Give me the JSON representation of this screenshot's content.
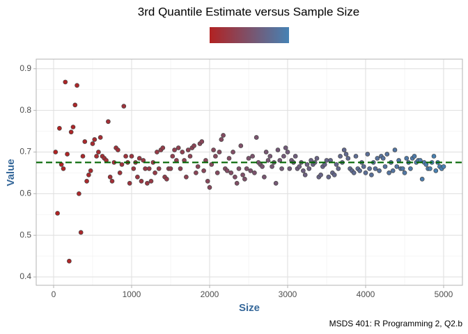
{
  "chart_data": {
    "type": "scatter",
    "title": "3rd Quantile Estimate versus Sample Size",
    "x_label": "Size",
    "y_label": "Value",
    "caption": "MSDS 401: R Programming 2, Q2.b",
    "low_color": "#b22222",
    "high_color": "#4682b4",
    "reference_line": 0.675,
    "reference_color": "#006400",
    "x": [
      25,
      50,
      75,
      100,
      125,
      150,
      175,
      200,
      225,
      250,
      275,
      300,
      325,
      350,
      375,
      400,
      425,
      450,
      475,
      500,
      525,
      550,
      575,
      600,
      625,
      650,
      675,
      700,
      725,
      750,
      775,
      800,
      825,
      850,
      875,
      900,
      925,
      950,
      975,
      1000,
      1025,
      1050,
      1075,
      1100,
      1125,
      1150,
      1175,
      1200,
      1225,
      1250,
      1275,
      1300,
      1325,
      1350,
      1375,
      1400,
      1425,
      1450,
      1475,
      1500,
      1525,
      1550,
      1575,
      1600,
      1625,
      1650,
      1675,
      1700,
      1725,
      1750,
      1775,
      1800,
      1825,
      1850,
      1875,
      1900,
      1925,
      1950,
      1975,
      2000,
      2025,
      2050,
      2075,
      2100,
      2125,
      2150,
      2175,
      2200,
      2225,
      2250,
      2275,
      2300,
      2325,
      2350,
      2375,
      2400,
      2425,
      2450,
      2475,
      2500,
      2525,
      2550,
      2575,
      2600,
      2625,
      2650,
      2675,
      2700,
      2725,
      2750,
      2775,
      2800,
      2825,
      2850,
      2875,
      2900,
      2925,
      2950,
      2975,
      3000,
      3025,
      3050,
      3075,
      3100,
      3125,
      3150,
      3175,
      3200,
      3225,
      3250,
      3275,
      3300,
      3325,
      3350,
      3375,
      3400,
      3425,
      3450,
      3475,
      3500,
      3525,
      3550,
      3575,
      3600,
      3625,
      3650,
      3675,
      3700,
      3725,
      3750,
      3775,
      3800,
      3825,
      3850,
      3875,
      3900,
      3925,
      3950,
      3975,
      4000,
      4025,
      4050,
      4075,
      4100,
      4125,
      4150,
      4175,
      4200,
      4225,
      4250,
      4275,
      4300,
      4325,
      4350,
      4375,
      4400,
      4425,
      4450,
      4475,
      4500,
      4525,
      4550,
      4575,
      4600,
      4625,
      4650,
      4675,
      4700,
      4725,
      4750,
      4775,
      4800,
      4825,
      4850,
      4875,
      4900,
      4925,
      4950,
      4975,
      5000
    ],
    "values": [
      0.7,
      0.553,
      0.757,
      0.67,
      0.66,
      0.868,
      0.695,
      0.438,
      0.748,
      0.76,
      0.813,
      0.86,
      0.6,
      0.507,
      0.69,
      0.725,
      0.63,
      0.645,
      0.655,
      0.72,
      0.73,
      0.69,
      0.7,
      0.735,
      0.69,
      0.685,
      0.68,
      0.773,
      0.64,
      0.63,
      0.675,
      0.71,
      0.705,
      0.65,
      0.67,
      0.81,
      0.69,
      0.675,
      0.625,
      0.69,
      0.66,
      0.675,
      0.64,
      0.685,
      0.63,
      0.68,
      0.66,
      0.625,
      0.66,
      0.63,
      0.675,
      0.65,
      0.7,
      0.66,
      0.705,
      0.71,
      0.64,
      0.635,
      0.66,
      0.66,
      0.69,
      0.705,
      0.68,
      0.71,
      0.66,
      0.7,
      0.68,
      0.64,
      0.705,
      0.69,
      0.71,
      0.715,
      0.65,
      0.665,
      0.72,
      0.725,
      0.655,
      0.68,
      0.63,
      0.615,
      0.67,
      0.705,
      0.69,
      0.65,
      0.7,
      0.73,
      0.74,
      0.66,
      0.655,
      0.685,
      0.65,
      0.7,
      0.64,
      0.625,
      0.66,
      0.715,
      0.645,
      0.635,
      0.66,
      0.685,
      0.655,
      0.69,
      0.65,
      0.735,
      0.675,
      0.67,
      0.665,
      0.64,
      0.7,
      0.68,
      0.69,
      0.665,
      0.675,
      0.625,
      0.705,
      0.68,
      0.66,
      0.69,
      0.71,
      0.7,
      0.66,
      0.68,
      0.675,
      0.69,
      0.66,
      0.665,
      0.675,
      0.655,
      0.645,
      0.67,
      0.66,
      0.68,
      0.67,
      0.675,
      0.685,
      0.64,
      0.645,
      0.665,
      0.67,
      0.68,
      0.64,
      0.68,
      0.65,
      0.645,
      0.67,
      0.66,
      0.69,
      0.675,
      0.705,
      0.695,
      0.685,
      0.66,
      0.655,
      0.65,
      0.69,
      0.66,
      0.655,
      0.675,
      0.665,
      0.65,
      0.695,
      0.66,
      0.645,
      0.675,
      0.66,
      0.685,
      0.655,
      0.69,
      0.685,
      0.665,
      0.695,
      0.65,
      0.675,
      0.655,
      0.705,
      0.665,
      0.68,
      0.66,
      0.66,
      0.65,
      0.685,
      0.675,
      0.66,
      0.685,
      0.69,
      0.675,
      0.68,
      0.68,
      0.635,
      0.675,
      0.67,
      0.66,
      0.66,
      0.675,
      0.69,
      0.655,
      0.675,
      0.665,
      0.66,
      0.665
    ],
    "xlim": [
      -223,
      5241
    ],
    "ylim": [
      0.38,
      0.923
    ],
    "xticks": [
      0,
      1000,
      2000,
      3000,
      4000,
      5000
    ],
    "yticks": [
      0.4,
      0.5,
      0.6,
      0.7,
      0.8,
      0.9
    ],
    "grid": true
  }
}
